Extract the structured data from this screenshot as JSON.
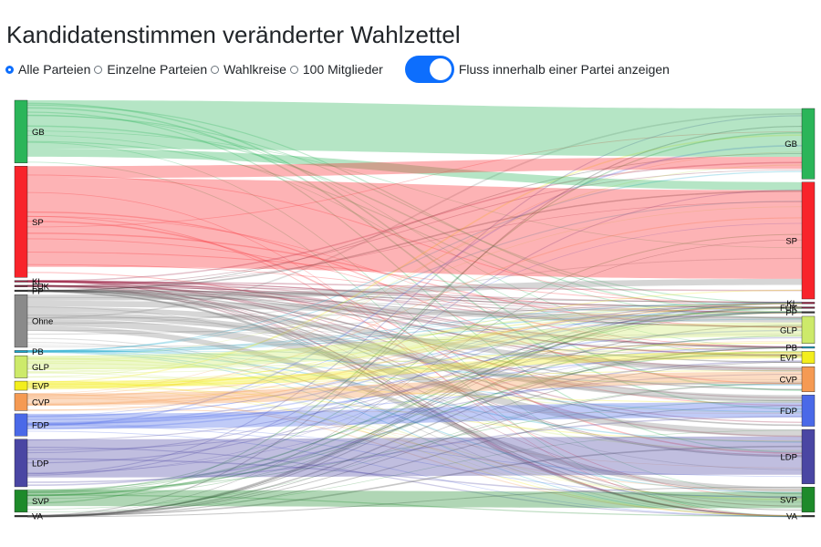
{
  "page": {
    "title": "Kandidatenstimmen veränderter Wahlzettel"
  },
  "controls": {
    "radios": [
      {
        "label": "Alle Parteien",
        "checked": true
      },
      {
        "label": "Einzelne Parteien",
        "checked": false
      },
      {
        "label": "Wahlkreise",
        "checked": false
      },
      {
        "label": "100 Mitglieder",
        "checked": false
      }
    ],
    "toggle": {
      "label": "Fluss innerhalb einer Partei anzeigen",
      "on": true
    }
  },
  "chart_data": {
    "type": "sankey",
    "title": "",
    "nodes_left": [
      {
        "name": "GB",
        "color": "#2bb559",
        "value": 62
      },
      {
        "name": "SP",
        "color": "#f8242b",
        "value": 110
      },
      {
        "name": "KL",
        "color": "#9b1e3f",
        "value": 1.5
      },
      {
        "name": "FUK",
        "color": "#7a1f3a",
        "value": 1.5
      },
      {
        "name": "PP",
        "color": "#333333",
        "value": 1.5
      },
      {
        "name": "Ohne",
        "color": "#8a8a8a",
        "value": 52
      },
      {
        "name": "PB",
        "color": "#19a8cc",
        "value": 2
      },
      {
        "name": "GLP",
        "color": "#cdea6a",
        "value": 22
      },
      {
        "name": "EVP",
        "color": "#f3ee1c",
        "value": 9
      },
      {
        "name": "CVP",
        "color": "#f59a53",
        "value": 17
      },
      {
        "name": "FDP",
        "color": "#4a69e8",
        "value": 22
      },
      {
        "name": "LDP",
        "color": "#4a46a3",
        "value": 47
      },
      {
        "name": "SVP",
        "color": "#1e8a2a",
        "value": 22
      },
      {
        "name": "VA",
        "color": "#333333",
        "value": 1.5
      }
    ],
    "nodes_right": [
      {
        "name": "GB",
        "color": "#2bb559",
        "value": 70
      },
      {
        "name": "SP",
        "color": "#f8242b",
        "value": 116
      },
      {
        "name": "KL",
        "color": "#9b1e3f",
        "value": 1.5
      },
      {
        "name": "FUK",
        "color": "#7a1f3a",
        "value": 1.5
      },
      {
        "name": "PP",
        "color": "#333333",
        "value": 1.5
      },
      {
        "name": "GLP",
        "color": "#cdea6a",
        "value": 27
      },
      {
        "name": "PB",
        "color": "#19a8cc",
        "value": 1.5
      },
      {
        "name": "EVP",
        "color": "#f3ee1c",
        "value": 12
      },
      {
        "name": "CVP",
        "color": "#f59a53",
        "value": 25
      },
      {
        "name": "FDP",
        "color": "#4a69e8",
        "value": 31
      },
      {
        "name": "LDP",
        "color": "#4a46a3",
        "value": 54
      },
      {
        "name": "SVP",
        "color": "#1e8a2a",
        "value": 25
      },
      {
        "name": "VA",
        "color": "#333333",
        "value": 1.5
      }
    ],
    "links_major": [
      {
        "source": "GB",
        "target": "GB",
        "value": 48
      },
      {
        "source": "GB",
        "target": "SP",
        "value": 8
      },
      {
        "source": "SP",
        "target": "GB",
        "value": 12
      },
      {
        "source": "SP",
        "target": "SP",
        "value": 88
      },
      {
        "source": "Ohne",
        "target": "SP",
        "value": 6
      },
      {
        "source": "Ohne",
        "target": "GLP",
        "value": 6
      },
      {
        "source": "Ohne",
        "target": "CVP",
        "value": 5
      },
      {
        "source": "Ohne",
        "target": "FDP",
        "value": 7
      },
      {
        "source": "Ohne",
        "target": "LDP",
        "value": 7
      },
      {
        "source": "Ohne",
        "target": "SVP",
        "value": 5
      },
      {
        "source": "GLP",
        "target": "GLP",
        "value": 14
      },
      {
        "source": "EVP",
        "target": "EVP",
        "value": 7
      },
      {
        "source": "CVP",
        "target": "CVP",
        "value": 12
      },
      {
        "source": "FDP",
        "target": "FDP",
        "value": 15
      },
      {
        "source": "LDP",
        "target": "LDP",
        "value": 38
      },
      {
        "source": "SVP",
        "target": "SVP",
        "value": 16
      }
    ]
  }
}
